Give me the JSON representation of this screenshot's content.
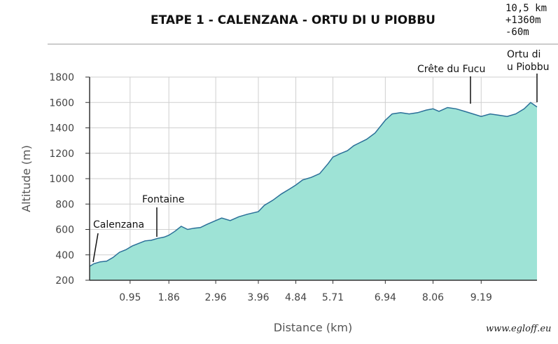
{
  "header": {
    "title": "ETAPE 1 - CALENZANA - ORTU DI U PIOBBU",
    "stats": [
      "10,5 km",
      "+1360m",
      "-60m"
    ]
  },
  "watermark": "www.egloff.eu",
  "colors": {
    "fill": "#9ee3d6",
    "line": "#2a6f98",
    "grid": "#cfcfcf",
    "axis": "#333333"
  },
  "chart_data": {
    "type": "area",
    "xlabel": "Distance (km)",
    "ylabel": "Altitude (m)",
    "xlim": [
      0,
      10.5
    ],
    "ylim": [
      200,
      1800
    ],
    "yticks": [
      200,
      400,
      600,
      800,
      1000,
      1200,
      1400,
      1600,
      1800
    ],
    "xticks": [
      "0.95",
      "1.86",
      "2.96",
      "3.96",
      "4.84",
      "5.71",
      "6.94",
      "8.06",
      "9.19"
    ],
    "grid": true,
    "x": [
      0,
      0.1,
      0.25,
      0.4,
      0.55,
      0.7,
      0.85,
      1.0,
      1.15,
      1.3,
      1.45,
      1.6,
      1.75,
      1.86,
      2.0,
      2.15,
      2.3,
      2.45,
      2.6,
      2.75,
      2.96,
      3.1,
      3.3,
      3.5,
      3.7,
      3.96,
      4.1,
      4.3,
      4.5,
      4.7,
      4.84,
      5.0,
      5.2,
      5.4,
      5.6,
      5.71,
      5.9,
      6.05,
      6.2,
      6.5,
      6.7,
      6.94,
      7.1,
      7.3,
      7.5,
      7.7,
      7.9,
      8.06,
      8.2,
      8.4,
      8.6,
      8.8,
      9.0,
      9.19,
      9.4,
      9.6,
      9.8,
      10.0,
      10.2,
      10.35,
      10.5
    ],
    "y": [
      310,
      330,
      345,
      350,
      380,
      420,
      440,
      470,
      490,
      510,
      515,
      530,
      540,
      555,
      585,
      625,
      600,
      610,
      615,
      640,
      670,
      690,
      670,
      700,
      720,
      740,
      790,
      830,
      880,
      920,
      950,
      990,
      1010,
      1040,
      1120,
      1170,
      1200,
      1220,
      1260,
      1310,
      1360,
      1460,
      1510,
      1520,
      1510,
      1520,
      1540,
      1550,
      1530,
      1560,
      1550,
      1530,
      1510,
      1490,
      1510,
      1500,
      1490,
      1510,
      1550,
      1600,
      1565
    ],
    "annotations": [
      {
        "label": "Calenzana",
        "x": 0.05,
        "y": 330
      },
      {
        "label": "Fontaine",
        "x": 1.6,
        "y": 530
      },
      {
        "label": "Crête du Fucu",
        "x": 9.0,
        "y": 1570
      },
      {
        "label": "Ortu di",
        "label2": "u Piobbu",
        "x": 10.5,
        "y": 1565
      }
    ]
  }
}
